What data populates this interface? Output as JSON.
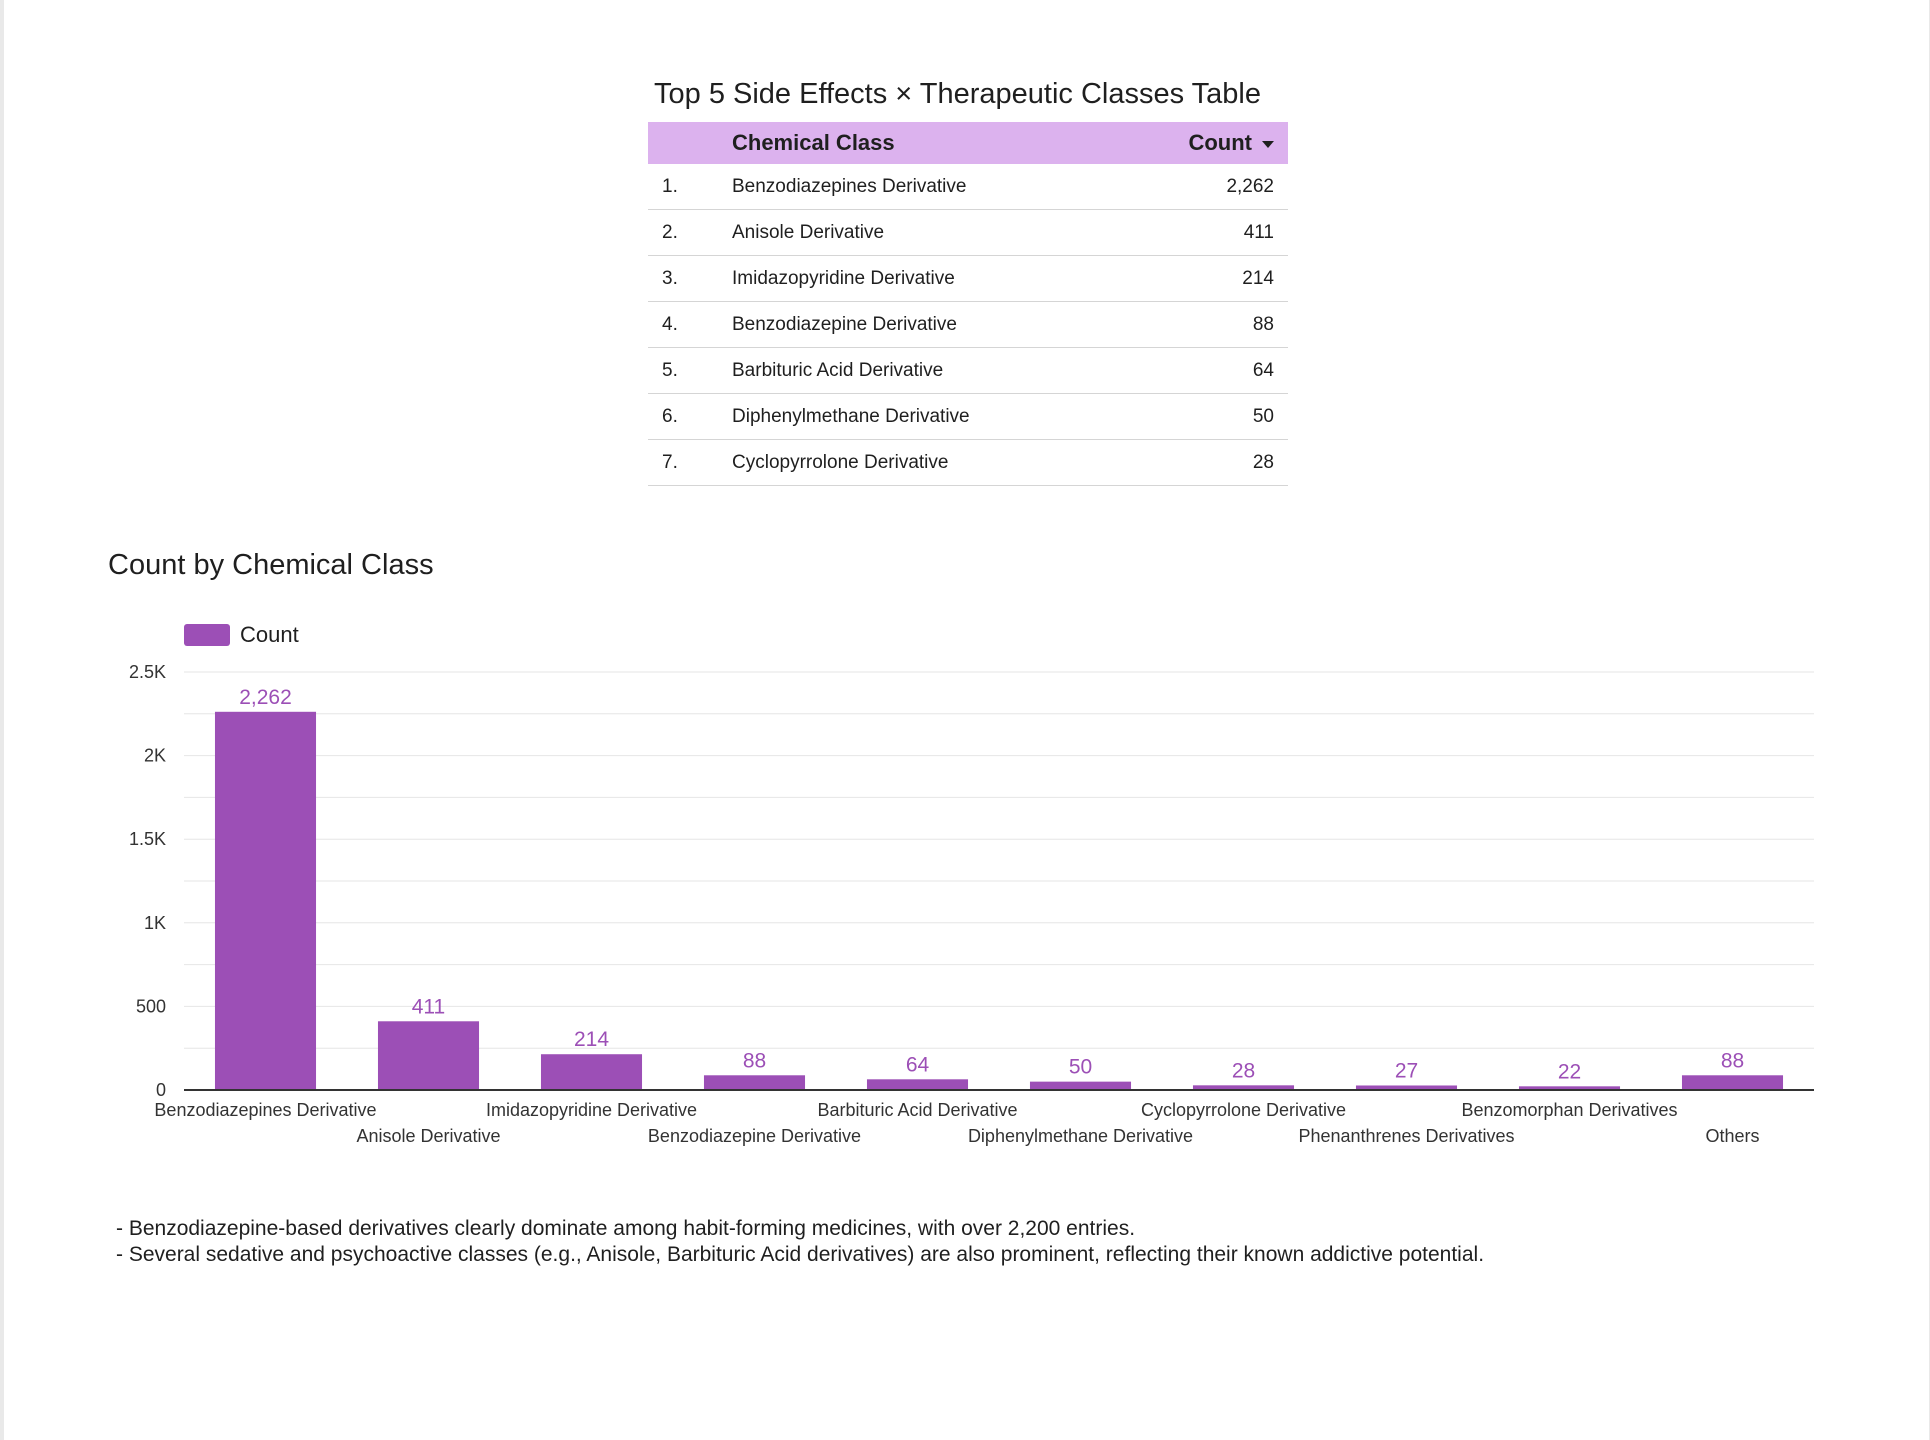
{
  "table": {
    "title": "Top 5 Side Effects × Therapeutic Classes Table",
    "header": {
      "index": "",
      "class": "Chemical Class",
      "count": "Count"
    },
    "rows": [
      {
        "index": "1.",
        "class": "Benzodiazepines Derivative",
        "count": "2,262"
      },
      {
        "index": "2.",
        "class": "Anisole Derivative",
        "count": "411"
      },
      {
        "index": "3.",
        "class": "Imidazopyridine Derivative",
        "count": "214"
      },
      {
        "index": "4.",
        "class": "Benzodiazepine Derivative",
        "count": "88"
      },
      {
        "index": "5.",
        "class": "Barbituric Acid Derivative",
        "count": "64"
      },
      {
        "index": "6.",
        "class": "Diphenylmethane Derivative",
        "count": "50"
      },
      {
        "index": "7.",
        "class": "Cyclopyrrolone Derivative",
        "count": "28"
      }
    ],
    "header_color": "#dcb2ee"
  },
  "chart_data": {
    "type": "bar",
    "title": "Count by Chemical Class",
    "xlabel": "",
    "ylabel": "",
    "categories": [
      "Benzodiazepines Derivative",
      "Anisole Derivative",
      "Imidazopyridine Derivative",
      "Benzodiazepine Derivative",
      "Barbituric Acid Derivative",
      "Diphenylmethane Derivative",
      "Cyclopyrrolone Derivative",
      "Phenanthrenes Derivatives",
      "Benzomorphan Derivatives",
      "Others"
    ],
    "series": [
      {
        "name": "Count",
        "values": [
          2262,
          411,
          214,
          88,
          64,
          50,
          28,
          27,
          22,
          88
        ],
        "labels": [
          "2,262",
          "411",
          "214",
          "88",
          "64",
          "50",
          "28",
          "27",
          "22",
          "88"
        ]
      }
    ],
    "ylim": [
      0,
      2500
    ],
    "yticks": [
      0,
      500,
      1000,
      1500,
      2000,
      2500
    ],
    "ytick_labels": [
      "0",
      "500",
      "1K",
      "1.5K",
      "2K",
      "2.5K"
    ],
    "grid": true,
    "legend": "top-left",
    "bar_color": "#9c4fb6"
  },
  "notes": [
    "- Benzodiazepine-based derivatives clearly dominate among habit-forming medicines, with over 2,200 entries.",
    "- Several sedative and psychoactive classes (e.g., Anisole, Barbituric Acid derivatives) are also prominent, reflecting their known addictive potential."
  ]
}
